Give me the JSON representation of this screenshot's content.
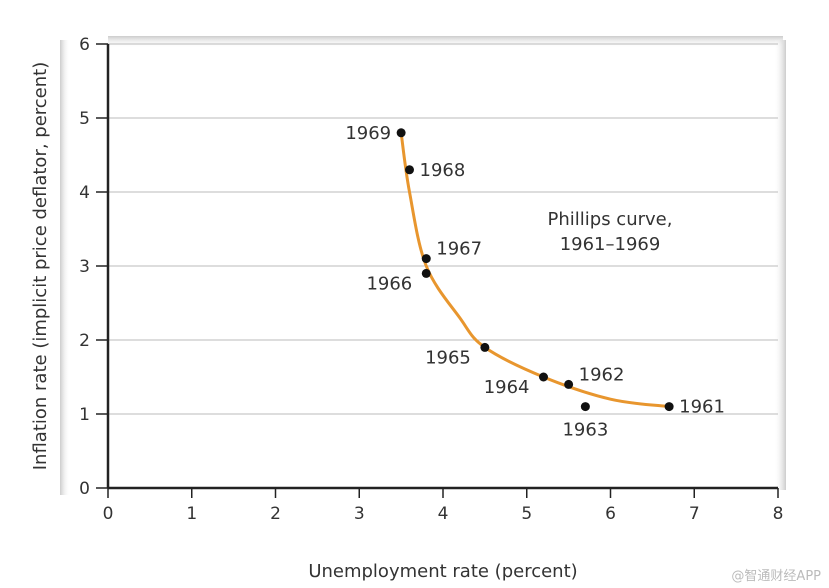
{
  "chart_data": {
    "type": "scatter",
    "title": "",
    "annotation": [
      "Phillips curve,",
      "1961–1969"
    ],
    "xlabel": "Unemployment rate (percent)",
    "ylabel": "Inflation rate (implicit price deflator, percent)",
    "xlim": [
      0,
      8
    ],
    "ylim": [
      0,
      6
    ],
    "xticks": [
      "0",
      "1",
      "2",
      "3",
      "4",
      "5",
      "6",
      "7",
      "8"
    ],
    "yticks": [
      "0",
      "1",
      "2",
      "3",
      "4",
      "5",
      "6"
    ],
    "grid": "horizontal",
    "points": [
      {
        "label": "1961",
        "x": 6.7,
        "y": 1.1,
        "label_side": "right"
      },
      {
        "label": "1962",
        "x": 5.5,
        "y": 1.4,
        "label_side": "above-right"
      },
      {
        "label": "1963",
        "x": 5.7,
        "y": 1.1,
        "label_side": "below"
      },
      {
        "label": "1964",
        "x": 5.2,
        "y": 1.5,
        "label_side": "below-left"
      },
      {
        "label": "1965",
        "x": 4.5,
        "y": 1.9,
        "label_side": "below-left"
      },
      {
        "label": "1966",
        "x": 3.8,
        "y": 2.9,
        "label_side": "below-left"
      },
      {
        "label": "1967",
        "x": 3.8,
        "y": 3.1,
        "label_side": "above-right"
      },
      {
        "label": "1968",
        "x": 3.6,
        "y": 4.3,
        "label_side": "right"
      },
      {
        "label": "1969",
        "x": 3.5,
        "y": 4.8,
        "label_side": "left"
      }
    ],
    "curve": {
      "name": "Phillips curve",
      "x": [
        3.5,
        3.6,
        3.8,
        4.2,
        4.5,
        5.2,
        6.0,
        6.7
      ],
      "y": [
        4.8,
        4.0,
        3.0,
        2.3,
        1.9,
        1.5,
        1.2,
        1.1
      ]
    },
    "colors": {
      "curve": "#e8962e",
      "points": "#111111",
      "grid": "#bbbbbb",
      "axis": "#222222"
    }
  },
  "watermark": "@智通财经APP"
}
